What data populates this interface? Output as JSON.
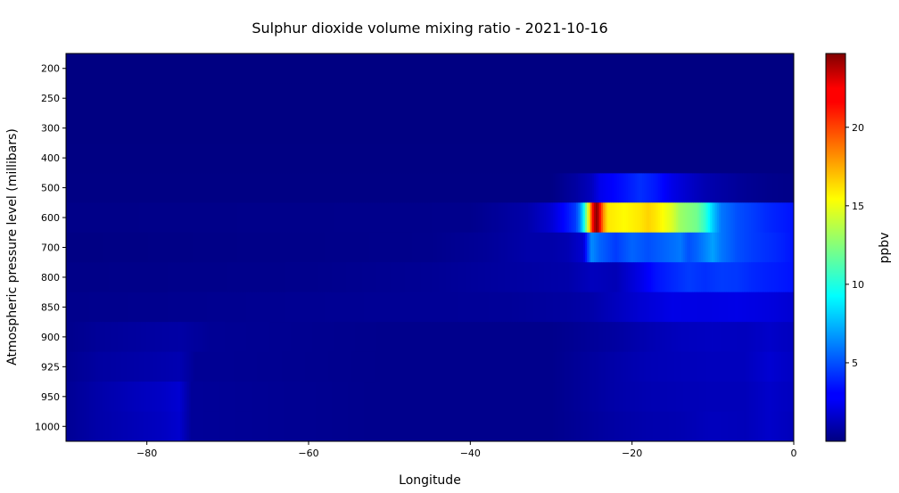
{
  "chart_data": {
    "type": "heatmap",
    "title": "Sulphur dioxide volume mixing ratio - 2021-10-16",
    "xlabel": "Longitude",
    "ylabel": "Atmospheric pressure level (millibars)",
    "xlim": [
      -90,
      0
    ],
    "x_ticks": [
      -80,
      -60,
      -40,
      -20,
      0
    ],
    "pressure_levels": [
      "200",
      "250",
      "300",
      "400",
      "500",
      "600",
      "700",
      "800",
      "850",
      "900",
      "925",
      "950",
      "1000"
    ],
    "colormap": "jet",
    "colorbar": {
      "label": "ppbv",
      "range": [
        0,
        24.7
      ],
      "ticks": [
        5,
        10,
        15,
        20
      ]
    },
    "bands": [
      {
        "level": "500",
        "points": [
          [
            -90,
            0.1
          ],
          [
            -30,
            0.1
          ],
          [
            -27,
            0.8
          ],
          [
            -25,
            1.5
          ],
          [
            -24,
            2.6
          ],
          [
            -21,
            3.5
          ],
          [
            -19,
            4.2
          ],
          [
            -17,
            3.6
          ],
          [
            -15,
            2.5
          ],
          [
            -13,
            1.8
          ],
          [
            -11,
            1.2
          ],
          [
            -9,
            0.9
          ],
          [
            -6,
            0.5
          ],
          [
            -3,
            0.3
          ],
          [
            0,
            0.2
          ]
        ]
      },
      {
        "level": "600",
        "points": [
          [
            -90,
            0.2
          ],
          [
            -40,
            0.3
          ],
          [
            -33,
            1.0
          ],
          [
            -30,
            2.0
          ],
          [
            -28,
            3.5
          ],
          [
            -27,
            4.5
          ],
          [
            -26.5,
            6
          ],
          [
            -26,
            9
          ],
          [
            -25.7,
            12
          ],
          [
            -25.3,
            16
          ],
          [
            -25,
            20
          ],
          [
            -24.7,
            23
          ],
          [
            -24.3,
            24.6
          ],
          [
            -23.9,
            21
          ],
          [
            -23.5,
            18
          ],
          [
            -23,
            16
          ],
          [
            -21,
            15.5
          ],
          [
            -19,
            16
          ],
          [
            -18,
            16.5
          ],
          [
            -17,
            16
          ],
          [
            -15,
            14.5
          ],
          [
            -14,
            13
          ],
          [
            -12,
            12
          ],
          [
            -11,
            10.5
          ],
          [
            -10,
            8
          ],
          [
            -9,
            6
          ],
          [
            -7,
            5
          ],
          [
            -5,
            4.5
          ],
          [
            -3,
            4
          ],
          [
            0,
            3.5
          ]
        ]
      },
      {
        "level": "700",
        "points": [
          [
            -90,
            0.1
          ],
          [
            -45,
            0.3
          ],
          [
            -38,
            0.6
          ],
          [
            -33,
            1.0
          ],
          [
            -30,
            1.0
          ],
          [
            -28,
            1.2
          ],
          [
            -26,
            2.0
          ],
          [
            -25.5,
            4.5
          ],
          [
            -25,
            6.5
          ],
          [
            -24,
            5.5
          ],
          [
            -22,
            4.5
          ],
          [
            -20,
            5.5
          ],
          [
            -18,
            5
          ],
          [
            -16,
            5.5
          ],
          [
            -14,
            6
          ],
          [
            -13,
            5
          ],
          [
            -12,
            5.5
          ],
          [
            -10,
            7
          ],
          [
            -9,
            6
          ],
          [
            -7,
            5
          ],
          [
            -5,
            4.5
          ],
          [
            -2,
            4
          ],
          [
            0,
            3.5
          ]
        ]
      },
      {
        "level": "800",
        "points": [
          [
            -90,
            0.2
          ],
          [
            -60,
            0.3
          ],
          [
            -45,
            0.5
          ],
          [
            -35,
            0.8
          ],
          [
            -28,
            1.0
          ],
          [
            -25,
            1.5
          ],
          [
            -22,
            1.3
          ],
          [
            -19,
            2.5
          ],
          [
            -17,
            3.5
          ],
          [
            -15,
            4
          ],
          [
            -13,
            4.5
          ],
          [
            -11,
            4.2
          ],
          [
            -9,
            4.5
          ],
          [
            -7,
            4.4
          ],
          [
            -5,
            4
          ],
          [
            -3,
            3.8
          ],
          [
            0,
            3.5
          ]
        ]
      },
      {
        "level": "850",
        "points": [
          [
            -90,
            0.3
          ],
          [
            -70,
            0.4
          ],
          [
            -50,
            0.5
          ],
          [
            -35,
            0.6
          ],
          [
            -28,
            0.8
          ],
          [
            -25,
            1.0
          ],
          [
            -22,
            1.5
          ],
          [
            -19,
            2.0
          ],
          [
            -15,
            2.5
          ],
          [
            -11,
            2.4
          ],
          [
            -7,
            2.5
          ],
          [
            -3,
            2.3
          ],
          [
            0,
            2.0
          ]
        ]
      },
      {
        "level": "900",
        "points": [
          [
            -90,
            0.3
          ],
          [
            -86,
            0.6
          ],
          [
            -80,
            0.8
          ],
          [
            -76,
            0.9
          ],
          [
            -72,
            0.5
          ],
          [
            -50,
            0.3
          ],
          [
            -30,
            0.3
          ],
          [
            -22,
            0.8
          ],
          [
            -18,
            1.2
          ],
          [
            -14,
            1.5
          ],
          [
            -10,
            1.6
          ],
          [
            -6,
            1.5
          ],
          [
            -3,
            1.8
          ],
          [
            0,
            1.5
          ]
        ]
      },
      {
        "level": "925",
        "points": [
          [
            -90,
            0.4
          ],
          [
            -86,
            0.8
          ],
          [
            -80,
            1.0
          ],
          [
            -76,
            1.2
          ],
          [
            -74,
            0.5
          ],
          [
            -50,
            0.3
          ],
          [
            -30,
            0.3
          ],
          [
            -22,
            1.0
          ],
          [
            -18,
            1.3
          ],
          [
            -14,
            1.4
          ],
          [
            -10,
            1.5
          ],
          [
            -6,
            1.5
          ],
          [
            -3,
            2.0
          ],
          [
            0,
            1.6
          ]
        ]
      },
      {
        "level": "950",
        "points": [
          [
            -90,
            0.5
          ],
          [
            -86,
            1.0
          ],
          [
            -82,
            1.4
          ],
          [
            -78,
            1.7
          ],
          [
            -76,
            2.0
          ],
          [
            -74.5,
            0.6
          ],
          [
            -50,
            0.3
          ],
          [
            -30,
            0.3
          ],
          [
            -22,
            1.0
          ],
          [
            -18,
            1.2
          ],
          [
            -14,
            1.3
          ],
          [
            -10,
            1.4
          ],
          [
            -6,
            1.4
          ],
          [
            -3,
            1.8
          ],
          [
            0,
            1.5
          ]
        ]
      },
      {
        "level": "1000",
        "points": [
          [
            -90,
            0.5
          ],
          [
            -86,
            1.0
          ],
          [
            -82,
            1.3
          ],
          [
            -78,
            1.6
          ],
          [
            -76,
            1.9
          ],
          [
            -74.5,
            0.6
          ],
          [
            -50,
            0.3
          ],
          [
            -30,
            0.3
          ],
          [
            -22,
            0.9
          ],
          [
            -18,
            1.1
          ],
          [
            -14,
            1.2
          ],
          [
            -10,
            1.5
          ],
          [
            -6,
            1.4
          ],
          [
            -3,
            1.8
          ],
          [
            0,
            1.4
          ]
        ]
      },
      {
        "level": "200",
        "points": [
          [
            -90,
            0.05
          ],
          [
            0,
            0.05
          ]
        ]
      },
      {
        "level": "250",
        "points": [
          [
            -90,
            0.05
          ],
          [
            0,
            0.05
          ]
        ]
      },
      {
        "level": "300",
        "points": [
          [
            -90,
            0.05
          ],
          [
            0,
            0.05
          ]
        ]
      },
      {
        "level": "400",
        "points": [
          [
            -90,
            0.08
          ],
          [
            0,
            0.08
          ]
        ]
      }
    ]
  }
}
